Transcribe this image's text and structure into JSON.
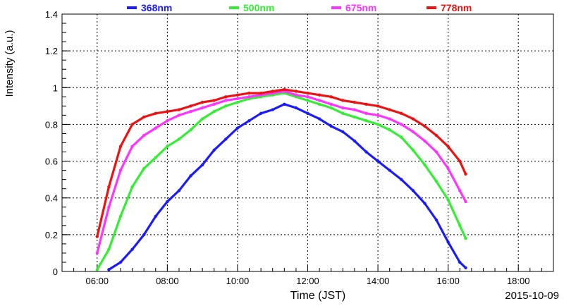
{
  "chart_data": {
    "type": "scatter",
    "xlabel": "Time (JST)",
    "ylabel": "Intensity (a.u.)",
    "date_label": "2015-10-09",
    "xlim": [
      "05:00",
      "19:00"
    ],
    "ylim": [
      0,
      1.4
    ],
    "x_ticks": [
      "06:00",
      "08:00",
      "10:00",
      "12:00",
      "14:00",
      "16:00",
      "18:00"
    ],
    "y_ticks": [
      "0",
      "0.2",
      "0.4",
      "0.6",
      "0.8",
      "1",
      "1.2",
      "1.4"
    ],
    "grid": true,
    "legend_position": "top",
    "series": [
      {
        "name": "368nm",
        "color": "#1a1aff",
        "points": [
          [
            "06:20",
            0.01
          ],
          [
            "06:40",
            0.05
          ],
          [
            "07:00",
            0.12
          ],
          [
            "07:20",
            0.2
          ],
          [
            "07:40",
            0.3
          ],
          [
            "08:00",
            0.38
          ],
          [
            "08:20",
            0.44
          ],
          [
            "08:40",
            0.52
          ],
          [
            "09:00",
            0.58
          ],
          [
            "09:20",
            0.66
          ],
          [
            "09:40",
            0.72
          ],
          [
            "10:00",
            0.78
          ],
          [
            "10:20",
            0.82
          ],
          [
            "10:40",
            0.86
          ],
          [
            "11:00",
            0.88
          ],
          [
            "11:20",
            0.91
          ],
          [
            "11:40",
            0.89
          ],
          [
            "12:00",
            0.86
          ],
          [
            "12:20",
            0.83
          ],
          [
            "12:40",
            0.79
          ],
          [
            "13:00",
            0.76
          ],
          [
            "13:20",
            0.71
          ],
          [
            "13:40",
            0.65
          ],
          [
            "14:00",
            0.6
          ],
          [
            "14:20",
            0.55
          ],
          [
            "14:40",
            0.5
          ],
          [
            "15:00",
            0.44
          ],
          [
            "15:20",
            0.37
          ],
          [
            "15:40",
            0.28
          ],
          [
            "16:00",
            0.16
          ],
          [
            "16:20",
            0.05
          ],
          [
            "16:30",
            0.02
          ]
        ]
      },
      {
        "name": "500nm",
        "color": "#33ee33",
        "points": [
          [
            "06:00",
            0.01
          ],
          [
            "06:20",
            0.12
          ],
          [
            "06:40",
            0.3
          ],
          [
            "07:00",
            0.46
          ],
          [
            "07:20",
            0.56
          ],
          [
            "07:40",
            0.62
          ],
          [
            "08:00",
            0.68
          ],
          [
            "08:20",
            0.72
          ],
          [
            "08:40",
            0.77
          ],
          [
            "09:00",
            0.83
          ],
          [
            "09:20",
            0.87
          ],
          [
            "09:40",
            0.9
          ],
          [
            "10:00",
            0.92
          ],
          [
            "10:20",
            0.94
          ],
          [
            "10:40",
            0.95
          ],
          [
            "11:00",
            0.96
          ],
          [
            "11:20",
            0.97
          ],
          [
            "11:40",
            0.95
          ],
          [
            "12:00",
            0.93
          ],
          [
            "12:20",
            0.91
          ],
          [
            "12:40",
            0.89
          ],
          [
            "13:00",
            0.86
          ],
          [
            "13:20",
            0.84
          ],
          [
            "13:40",
            0.82
          ],
          [
            "14:00",
            0.8
          ],
          [
            "14:20",
            0.77
          ],
          [
            "14:40",
            0.73
          ],
          [
            "15:00",
            0.66
          ],
          [
            "15:20",
            0.58
          ],
          [
            "15:40",
            0.49
          ],
          [
            "16:00",
            0.39
          ],
          [
            "16:20",
            0.25
          ],
          [
            "16:30",
            0.18
          ]
        ]
      },
      {
        "name": "675nm",
        "color": "#ff33ff",
        "points": [
          [
            "06:00",
            0.1
          ],
          [
            "06:20",
            0.35
          ],
          [
            "06:40",
            0.55
          ],
          [
            "07:00",
            0.68
          ],
          [
            "07:20",
            0.74
          ],
          [
            "07:40",
            0.78
          ],
          [
            "08:00",
            0.82
          ],
          [
            "08:20",
            0.85
          ],
          [
            "08:40",
            0.87
          ],
          [
            "09:00",
            0.89
          ],
          [
            "09:20",
            0.91
          ],
          [
            "09:40",
            0.93
          ],
          [
            "10:00",
            0.94
          ],
          [
            "10:20",
            0.95
          ],
          [
            "10:40",
            0.96
          ],
          [
            "11:00",
            0.97
          ],
          [
            "11:20",
            0.98
          ],
          [
            "11:40",
            0.96
          ],
          [
            "12:00",
            0.95
          ],
          [
            "12:20",
            0.93
          ],
          [
            "12:40",
            0.91
          ],
          [
            "13:00",
            0.89
          ],
          [
            "13:20",
            0.88
          ],
          [
            "13:40",
            0.86
          ],
          [
            "14:00",
            0.85
          ],
          [
            "14:20",
            0.83
          ],
          [
            "14:40",
            0.8
          ],
          [
            "15:00",
            0.76
          ],
          [
            "15:20",
            0.71
          ],
          [
            "15:40",
            0.65
          ],
          [
            "16:00",
            0.56
          ],
          [
            "16:20",
            0.44
          ],
          [
            "16:30",
            0.38
          ]
        ]
      },
      {
        "name": "778nm",
        "color": "#ee1111",
        "points": [
          [
            "06:00",
            0.19
          ],
          [
            "06:20",
            0.46
          ],
          [
            "06:40",
            0.68
          ],
          [
            "07:00",
            0.8
          ],
          [
            "07:20",
            0.84
          ],
          [
            "07:40",
            0.86
          ],
          [
            "08:00",
            0.87
          ],
          [
            "08:20",
            0.88
          ],
          [
            "08:40",
            0.9
          ],
          [
            "09:00",
            0.92
          ],
          [
            "09:20",
            0.93
          ],
          [
            "09:40",
            0.95
          ],
          [
            "10:00",
            0.96
          ],
          [
            "10:20",
            0.97
          ],
          [
            "10:40",
            0.97
          ],
          [
            "11:00",
            0.98
          ],
          [
            "11:20",
            0.99
          ],
          [
            "11:40",
            0.98
          ],
          [
            "12:00",
            0.97
          ],
          [
            "12:20",
            0.96
          ],
          [
            "12:40",
            0.95
          ],
          [
            "13:00",
            0.93
          ],
          [
            "13:20",
            0.92
          ],
          [
            "13:40",
            0.91
          ],
          [
            "14:00",
            0.9
          ],
          [
            "14:20",
            0.88
          ],
          [
            "14:40",
            0.86
          ],
          [
            "15:00",
            0.83
          ],
          [
            "15:20",
            0.79
          ],
          [
            "15:40",
            0.74
          ],
          [
            "16:00",
            0.68
          ],
          [
            "16:20",
            0.6
          ],
          [
            "16:30",
            0.53
          ]
        ]
      }
    ]
  }
}
